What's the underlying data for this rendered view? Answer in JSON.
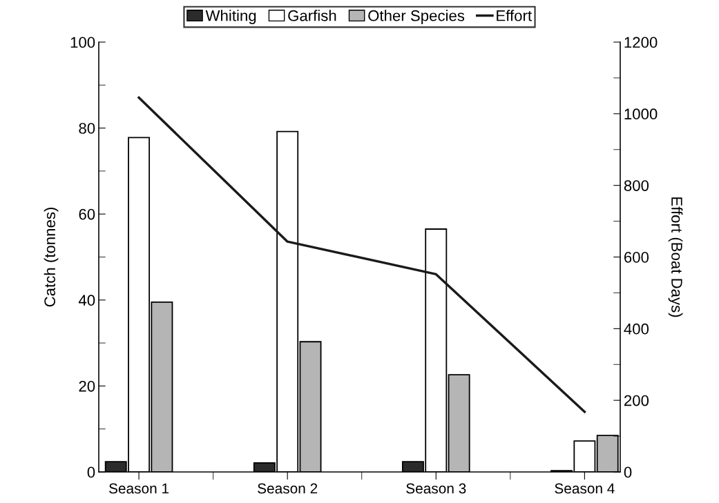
{
  "chart_data": {
    "type": "bar",
    "ylabel": "Catch (tonnes)",
    "y2label": "Effort (Boat Days)",
    "categories": [
      "Season 1",
      "Season 2",
      "Season 3",
      "Season 4"
    ],
    "series": [
      {
        "name": "Whiting",
        "color": "#2b2b2b",
        "values": [
          2.4,
          2.1,
          2.4,
          0.3
        ]
      },
      {
        "name": "Garfish",
        "color": "#ffffff",
        "values": [
          77.8,
          79.2,
          56.5,
          7.2
        ]
      },
      {
        "name": "Other Species",
        "color": "#b5b5b5",
        "values": [
          39.5,
          30.3,
          22.6,
          8.5
        ]
      },
      {
        "name": "Effort",
        "type": "line",
        "axis": "y2",
        "color": "#1a1a1a",
        "values": [
          1045,
          643,
          552,
          168
        ]
      }
    ],
    "ylim": [
      0,
      100
    ],
    "yticks": [
      0,
      20,
      40,
      60,
      80,
      100
    ],
    "y2lim": [
      0,
      1200
    ],
    "y2ticks": [
      0,
      200,
      400,
      600,
      800,
      1000,
      1200
    ],
    "legend": "top",
    "grid": false,
    "marker": "none",
    "line_style": "solid"
  }
}
